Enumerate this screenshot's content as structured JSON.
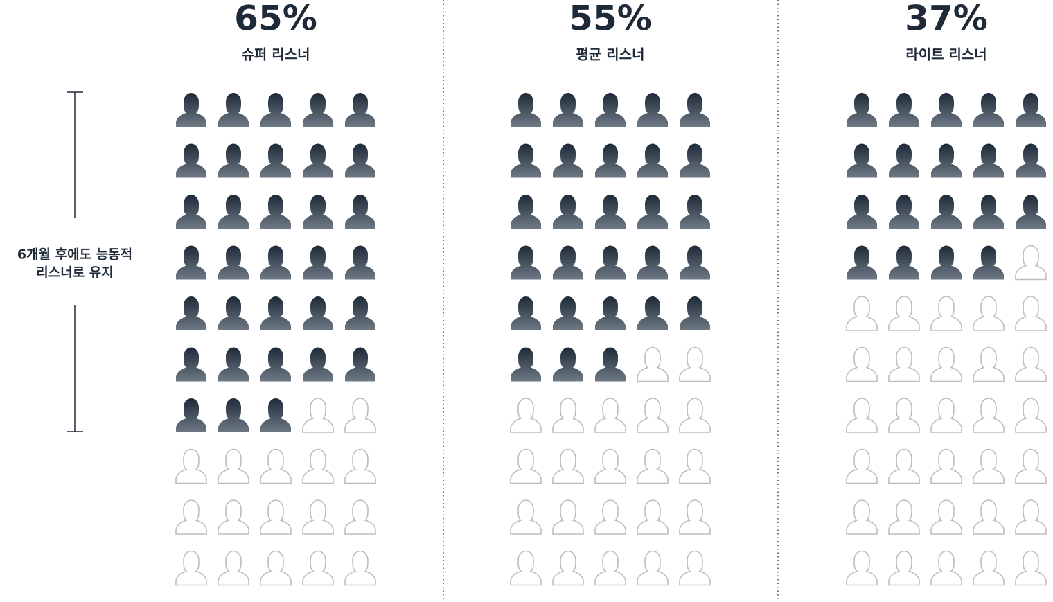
{
  "chart_data": {
    "type": "pictogram",
    "categories": [
      "슈퍼 리스너",
      "평균 리스너",
      "라이트 리스너"
    ],
    "values": [
      65,
      55,
      37
    ],
    "value_labels": [
      "65%",
      "55%",
      "37%"
    ],
    "annotation": [
      "6개월 후에도 능동적",
      "리스너로 유지"
    ],
    "color": "#1e2a38",
    "empty_color": "#bdbdbd"
  }
}
